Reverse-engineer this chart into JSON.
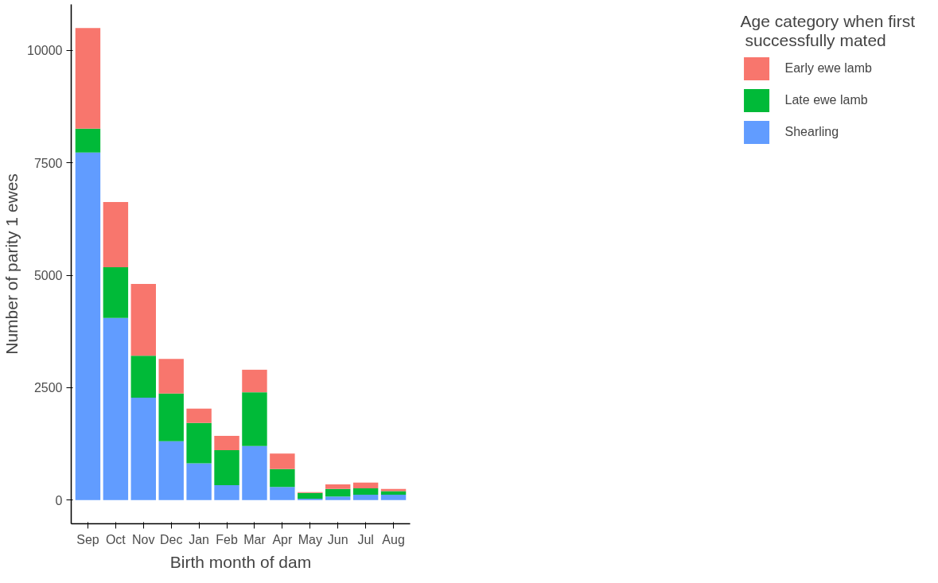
{
  "chart_data": {
    "type": "bar",
    "stacked": true,
    "xlabel": "Birth month of dam",
    "ylabel": "Number of parity 1 ewes",
    "legend_title": "Age category when first\n successfully mated",
    "legend": "right",
    "grid": false,
    "categories": [
      "Sep",
      "Oct",
      "Nov",
      "Dec",
      "Jan",
      "Feb",
      "Mar",
      "Apr",
      "May",
      "Jun",
      "Jul",
      "Aug"
    ],
    "ylim": [
      -525,
      11025
    ],
    "yticks": [
      0,
      2500,
      5000,
      7500,
      10000
    ],
    "series": [
      {
        "name": "Shearling",
        "color": "#619cff",
        "values": [
          7730,
          4050,
          2280,
          1310,
          820,
          335,
          1205,
          295,
          30,
          80,
          120,
          120
        ]
      },
      {
        "name": "Late ewe lamb",
        "color": "#00ba38",
        "values": [
          530,
          1130,
          930,
          1060,
          895,
          775,
          1195,
          395,
          130,
          170,
          140,
          80
        ]
      },
      {
        "name": "Early ewe lamb",
        "color": "#f8766d",
        "values": [
          2240,
          1450,
          1600,
          770,
          320,
          320,
          500,
          345,
          20,
          100,
          130,
          50
        ]
      }
    ]
  }
}
